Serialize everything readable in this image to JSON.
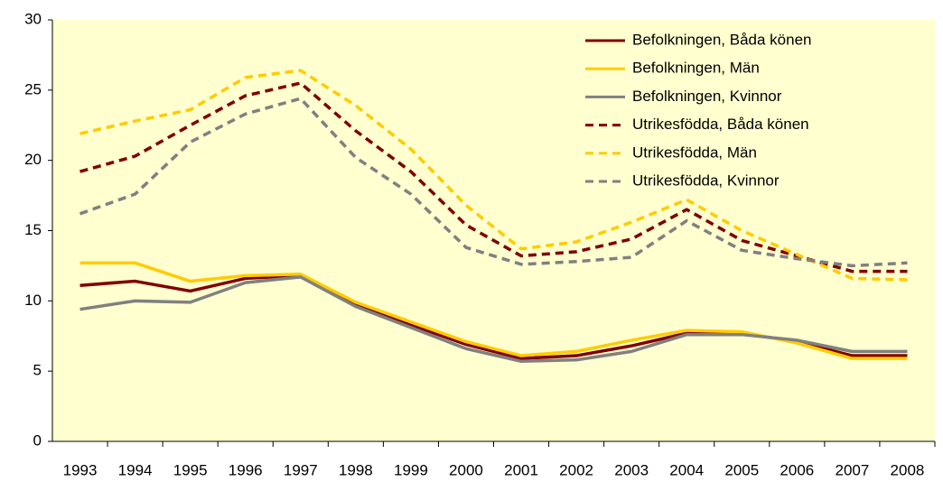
{
  "chart_data": {
    "type": "line",
    "x": [
      "1993",
      "1994",
      "1995",
      "1996",
      "1997",
      "1998",
      "1999",
      "2000",
      "2001",
      "2002",
      "2003",
      "2004",
      "2005",
      "2006",
      "2007",
      "2008"
    ],
    "ylim": [
      0,
      30
    ],
    "yticks": [
      0,
      5,
      10,
      15,
      20,
      25,
      30
    ],
    "grid": false,
    "legend": "upper right",
    "series": [
      {
        "name": "Befolkningen, Båda könen",
        "color": "#800000",
        "dashed": false,
        "values": [
          11.1,
          11.4,
          10.7,
          11.6,
          11.8,
          9.8,
          8.3,
          6.9,
          5.9,
          6.1,
          6.8,
          7.7,
          7.7,
          7.1,
          6.1,
          6.1
        ]
      },
      {
        "name": "Befolkningen, Män",
        "color": "#ffcc00",
        "dashed": false,
        "values": [
          12.7,
          12.7,
          11.4,
          11.8,
          11.9,
          9.9,
          8.5,
          7.1,
          6.1,
          6.4,
          7.2,
          7.9,
          7.8,
          7.0,
          5.9,
          5.9
        ]
      },
      {
        "name": "Befolkningen, Kvinnor",
        "color": "#808080",
        "dashed": false,
        "values": [
          9.4,
          10.0,
          9.9,
          11.3,
          11.7,
          9.6,
          8.1,
          6.6,
          5.7,
          5.8,
          6.4,
          7.6,
          7.6,
          7.2,
          6.4,
          6.4
        ]
      },
      {
        "name": "Utrikesfödda, Båda könen",
        "color": "#800000",
        "dashed": true,
        "values": [
          19.2,
          20.3,
          22.5,
          24.6,
          25.5,
          22.1,
          19.2,
          15.4,
          13.2,
          13.5,
          14.4,
          16.5,
          14.3,
          13.2,
          12.1,
          12.1
        ]
      },
      {
        "name": "Utrikesfödda, Män",
        "color": "#ffcc00",
        "dashed": true,
        "values": [
          21.9,
          22.8,
          23.6,
          25.9,
          26.4,
          23.9,
          20.8,
          16.8,
          13.7,
          14.2,
          15.6,
          17.2,
          15.0,
          13.3,
          11.6,
          11.5
        ]
      },
      {
        "name": "Utrikesfödda, Kvinnor",
        "color": "#808080",
        "dashed": true,
        "values": [
          16.2,
          17.6,
          21.3,
          23.3,
          24.4,
          20.2,
          17.6,
          13.8,
          12.6,
          12.8,
          13.1,
          15.7,
          13.6,
          13.0,
          12.5,
          12.7
        ]
      }
    ]
  }
}
